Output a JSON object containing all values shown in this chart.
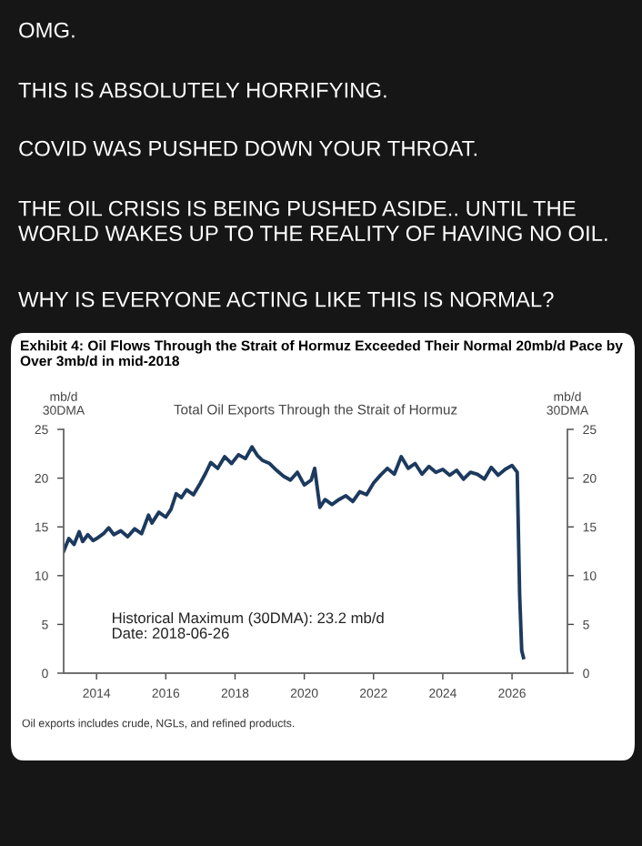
{
  "chart_data": {
    "type": "line",
    "title": "Exhibit 4: Oil Flows Through the Strait of Hormuz Exceeded Their Normal 20mb/d Pace by Over 3mb/d in mid-2018",
    "subtitle": "Total Oil Exports Through the Strait of Hormuz",
    "ylabel": "mb/d\n30DMA",
    "y2label": "mb/d\n30DMA",
    "annotations": [
      "OMG.",
      "THIS IS ABSOLUTELY HORRIFYING.",
      "COVID WAS PUSHED DOWN YOUR THROAT.",
      "THE OIL CRISIS IS BEING PUSHED ASIDE.. UNTIL THE WORLD WAKES UP TO THE REALITY OF HAVING NO OIL.",
      "WHY IS EVERYONE ACTING LIKE THIS IS NORMAL?",
      "Historical Maximum (30DMA): 23.2 mb/d\nDate: 2018-06-26",
      "Oil exports includes crude, NGLs, and refined products."
    ],
    "series": [
      {
        "color": "#1c3a5e",
        "x": [
          2013.05,
          2013.2,
          2013.35,
          2013.5,
          2013.6,
          2013.75,
          2013.9,
          2014.0,
          2014.2,
          2014.35,
          2014.5,
          2014.7,
          2014.9,
          2015.1,
          2015.3,
          2015.5,
          2015.6,
          2015.8,
          2016.0,
          2016.15,
          2016.3,
          2016.45,
          2016.6,
          2016.8,
          2017.0,
          2017.15,
          2017.3,
          2017.5,
          2017.7,
          2017.9,
          2018.1,
          2018.3,
          2018.49,
          2018.65,
          2018.8,
          2019.0,
          2019.2,
          2019.4,
          2019.6,
          2019.8,
          2020.0,
          2020.2,
          2020.3,
          2020.45,
          2020.6,
          2020.8,
          2021.0,
          2021.2,
          2021.4,
          2021.6,
          2021.8,
          2022.0,
          2022.2,
          2022.4,
          2022.6,
          2022.8,
          2023.0,
          2023.2,
          2023.4,
          2023.6,
          2023.8,
          2024.0,
          2024.2,
          2024.4,
          2024.6,
          2024.8,
          2025.0,
          2025.2,
          2025.4,
          2025.6,
          2025.8,
          2026.0,
          2026.15,
          2026.22,
          2026.28,
          2026.33
        ],
        "values": [
          12.5,
          13.8,
          13.2,
          14.5,
          13.5,
          14.2,
          13.6,
          13.8,
          14.3,
          14.9,
          14.2,
          14.6,
          14.0,
          14.8,
          14.3,
          16.2,
          15.4,
          16.5,
          16.0,
          16.8,
          18.4,
          18.0,
          18.8,
          18.3,
          19.5,
          20.5,
          21.6,
          21.0,
          22.2,
          21.5,
          22.4,
          22.0,
          23.2,
          22.3,
          21.8,
          21.5,
          20.8,
          20.2,
          19.8,
          20.6,
          19.3,
          19.8,
          21.0,
          17.0,
          17.8,
          17.3,
          17.8,
          18.2,
          17.6,
          18.6,
          18.3,
          19.5,
          20.3,
          21.0,
          20.4,
          22.2,
          21.0,
          21.5,
          20.4,
          21.2,
          20.6,
          20.9,
          20.3,
          20.8,
          19.9,
          20.6,
          20.4,
          19.9,
          21.1,
          20.3,
          20.9,
          21.3,
          20.6,
          8.0,
          2.3,
          1.6
        ]
      }
    ],
    "xlim": [
      2013.05,
      2027.6
    ],
    "xticks": [
      2014,
      2016,
      2018,
      2020,
      2022,
      2024,
      2026
    ],
    "ylim": [
      0,
      25
    ],
    "yticks": [
      0,
      5,
      10,
      15,
      20,
      25
    ],
    "y2lim": [
      0,
      25
    ],
    "y2ticks": [
      0,
      5,
      10,
      15,
      20,
      25
    ],
    "grid": false,
    "legend": false
  }
}
